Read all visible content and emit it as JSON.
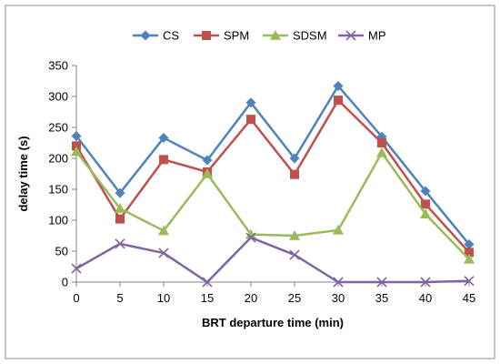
{
  "chart_data": {
    "type": "line",
    "xlabel": "BRT departure time  (min)",
    "ylabel": "delay time  (s)",
    "x": [
      0,
      5,
      10,
      15,
      20,
      25,
      30,
      35,
      40,
      45
    ],
    "xlim": [
      0,
      45
    ],
    "ylim": [
      0,
      350
    ],
    "yticks": [
      0,
      50,
      100,
      150,
      200,
      250,
      300,
      350
    ],
    "grid": false,
    "legend_position": "top",
    "series": [
      {
        "name": "CS",
        "color": "#4F81BD",
        "marker": "diamond",
        "values": [
          236,
          144,
          233,
          197,
          290,
          200,
          317,
          235,
          147,
          61
        ]
      },
      {
        "name": "SPM",
        "color": "#C0504D",
        "marker": "square",
        "values": [
          220,
          102,
          198,
          178,
          263,
          174,
          294,
          225,
          126,
          48
        ]
      },
      {
        "name": "SDSM",
        "color": "#9BBB59",
        "marker": "triangle",
        "values": [
          211,
          119,
          83,
          175,
          77,
          75,
          84,
          209,
          110,
          37
        ]
      },
      {
        "name": "MP",
        "color": "#8064A2",
        "marker": "x",
        "values": [
          22,
          62,
          47,
          0,
          72,
          44,
          0,
          0,
          0,
          2
        ]
      }
    ]
  }
}
